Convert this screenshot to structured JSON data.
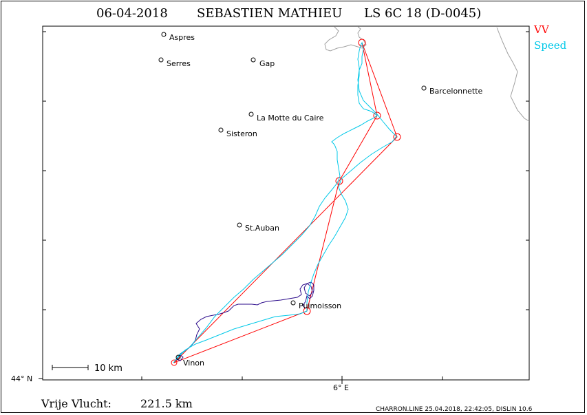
{
  "title": {
    "date": "06-04-2018",
    "pilot": "SEBASTIEN MATHIEU",
    "glider": "LS 6C 18 (D-0045)"
  },
  "legend": {
    "vv": {
      "label": "VV",
      "color": "#ff0000"
    },
    "speed": {
      "label": "Speed",
      "color": "#00c8e8"
    }
  },
  "towns": [
    {
      "name": "Aspres"
    },
    {
      "name": "Serres"
    },
    {
      "name": "Gap"
    },
    {
      "name": "Barcelonnette"
    },
    {
      "name": "La Motte du Caire"
    },
    {
      "name": "Sisteron"
    },
    {
      "name": "St.Auban"
    },
    {
      "name": "Puimoisson"
    },
    {
      "name": "Vinon"
    }
  ],
  "axes": {
    "lat_label": "44° N",
    "lon_label": "6° E"
  },
  "scale_bar": {
    "label": "10 km"
  },
  "distance": {
    "label": "Vrije Vlucht:",
    "value": "221.5 km"
  },
  "footer": "CHARRON.LINE 25.04.2018, 22:42:05, DISLIN 10.6",
  "colors": {
    "task": "#ff0000",
    "track_fast": "#00c8e8",
    "track_slow": "#2a0a8a",
    "border": "#a0a0a0"
  }
}
